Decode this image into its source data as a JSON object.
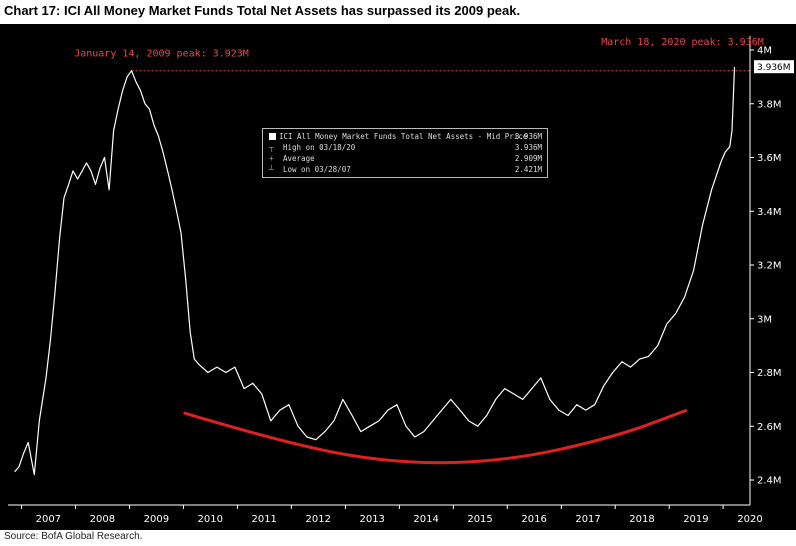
{
  "title": "Chart 17: ICI All Money Market Funds Total Net Assets has surpassed its 2009 peak.",
  "source": "Source: BofA Global Research.",
  "colors": {
    "background": "#000000",
    "series": "#ffffff",
    "annotation": "#e8474b",
    "trend": "#e02020",
    "axis_text": "#ffffff"
  },
  "chart_data": {
    "type": "line",
    "x_ticks": [
      "2007",
      "2008",
      "2009",
      "2010",
      "2011",
      "2012",
      "2013",
      "2014",
      "2015",
      "2016",
      "2017",
      "2018",
      "2019",
      "2020"
    ],
    "y_ticks": [
      "4M",
      "3.8M",
      "3.6M",
      "3.4M",
      "3.2M",
      "3M",
      "2.8M",
      "2.6M",
      "2.4M"
    ],
    "ylim": [
      2.4,
      4.0
    ],
    "y_unit": "M",
    "grid": false,
    "series": [
      {
        "name": "ICI All Money Market Funds Total Net Assets - Mid Price",
        "points": [
          [
            "2006-11-15",
            2.43
          ],
          [
            "2006-12-15",
            2.45
          ],
          [
            "2007-01-15",
            2.5
          ],
          [
            "2007-02-15",
            2.54
          ],
          [
            "2007-03-28",
            2.42
          ],
          [
            "2007-05-01",
            2.62
          ],
          [
            "2007-06-15",
            2.78
          ],
          [
            "2007-07-15",
            2.92
          ],
          [
            "2007-08-15",
            3.1
          ],
          [
            "2007-09-15",
            3.3
          ],
          [
            "2007-10-15",
            3.45
          ],
          [
            "2007-11-15",
            3.5
          ],
          [
            "2007-12-15",
            3.55
          ],
          [
            "2008-01-15",
            3.52
          ],
          [
            "2008-02-15",
            3.55
          ],
          [
            "2008-03-15",
            3.58
          ],
          [
            "2008-04-15",
            3.55
          ],
          [
            "2008-05-15",
            3.5
          ],
          [
            "2008-06-15",
            3.56
          ],
          [
            "2008-07-15",
            3.6
          ],
          [
            "2008-08-15",
            3.48
          ],
          [
            "2008-09-15",
            3.7
          ],
          [
            "2008-10-15",
            3.78
          ],
          [
            "2008-11-15",
            3.85
          ],
          [
            "2008-12-15",
            3.9
          ],
          [
            "2009-01-14",
            3.923
          ],
          [
            "2009-02-15",
            3.88
          ],
          [
            "2009-03-15",
            3.85
          ],
          [
            "2009-04-15",
            3.8
          ],
          [
            "2009-05-15",
            3.78
          ],
          [
            "2009-06-15",
            3.72
          ],
          [
            "2009-07-15",
            3.68
          ],
          [
            "2009-08-15",
            3.62
          ],
          [
            "2009-09-15",
            3.55
          ],
          [
            "2009-10-15",
            3.48
          ],
          [
            "2009-11-15",
            3.4
          ],
          [
            "2009-12-15",
            3.32
          ],
          [
            "2010-01-15",
            3.15
          ],
          [
            "2010-02-15",
            2.95
          ],
          [
            "2010-03-15",
            2.85
          ],
          [
            "2010-04-15",
            2.83
          ],
          [
            "2010-06-15",
            2.8
          ],
          [
            "2010-08-15",
            2.82
          ],
          [
            "2010-10-15",
            2.8
          ],
          [
            "2010-12-15",
            2.82
          ],
          [
            "2011-02-15",
            2.74
          ],
          [
            "2011-04-15",
            2.76
          ],
          [
            "2011-06-15",
            2.72
          ],
          [
            "2011-08-15",
            2.62
          ],
          [
            "2011-10-15",
            2.66
          ],
          [
            "2011-12-15",
            2.68
          ],
          [
            "2012-02-15",
            2.6
          ],
          [
            "2012-04-15",
            2.56
          ],
          [
            "2012-06-15",
            2.55
          ],
          [
            "2012-08-15",
            2.58
          ],
          [
            "2012-10-15",
            2.62
          ],
          [
            "2012-12-15",
            2.7
          ],
          [
            "2013-02-15",
            2.64
          ],
          [
            "2013-04-15",
            2.58
          ],
          [
            "2013-06-15",
            2.6
          ],
          [
            "2013-08-15",
            2.62
          ],
          [
            "2013-10-15",
            2.66
          ],
          [
            "2013-12-15",
            2.68
          ],
          [
            "2014-02-15",
            2.6
          ],
          [
            "2014-04-15",
            2.56
          ],
          [
            "2014-06-15",
            2.58
          ],
          [
            "2014-08-15",
            2.62
          ],
          [
            "2014-10-15",
            2.66
          ],
          [
            "2014-12-15",
            2.7
          ],
          [
            "2015-02-15",
            2.66
          ],
          [
            "2015-04-15",
            2.62
          ],
          [
            "2015-06-15",
            2.6
          ],
          [
            "2015-08-15",
            2.64
          ],
          [
            "2015-10-15",
            2.7
          ],
          [
            "2015-12-15",
            2.74
          ],
          [
            "2016-02-15",
            2.72
          ],
          [
            "2016-04-15",
            2.7
          ],
          [
            "2016-06-15",
            2.74
          ],
          [
            "2016-08-15",
            2.78
          ],
          [
            "2016-10-15",
            2.7
          ],
          [
            "2016-12-15",
            2.66
          ],
          [
            "2017-02-15",
            2.64
          ],
          [
            "2017-04-15",
            2.68
          ],
          [
            "2017-06-15",
            2.66
          ],
          [
            "2017-08-15",
            2.68
          ],
          [
            "2017-10-15",
            2.75
          ],
          [
            "2017-12-15",
            2.8
          ],
          [
            "2018-02-15",
            2.84
          ],
          [
            "2018-04-15",
            2.82
          ],
          [
            "2018-06-15",
            2.85
          ],
          [
            "2018-08-15",
            2.86
          ],
          [
            "2018-10-15",
            2.9
          ],
          [
            "2018-12-15",
            2.98
          ],
          [
            "2019-02-15",
            3.02
          ],
          [
            "2019-04-15",
            3.08
          ],
          [
            "2019-06-15",
            3.18
          ],
          [
            "2019-08-15",
            3.35
          ],
          [
            "2019-10-15",
            3.48
          ],
          [
            "2019-12-15",
            3.58
          ],
          [
            "2020-01-15",
            3.62
          ],
          [
            "2020-02-15",
            3.64
          ],
          [
            "2020-03-01",
            3.7
          ],
          [
            "2020-03-10",
            3.82
          ],
          [
            "2020-03-18",
            3.936
          ]
        ]
      }
    ],
    "trend_curve": [
      [
        "2010-01-01",
        2.65
      ],
      [
        "2012-01-01",
        2.53
      ],
      [
        "2014-01-01",
        2.46
      ],
      [
        "2016-01-01",
        2.47
      ],
      [
        "2018-01-01",
        2.56
      ],
      [
        "2019-05-01",
        2.66
      ]
    ],
    "last_value_label": "3.936M",
    "annotations": [
      {
        "text": "January 14, 2009 peak: 3.923M",
        "date": "2009-01-14",
        "value": 3.923
      },
      {
        "text": "March 18, 2020 peak: 3.936M",
        "date": "2020-03-18",
        "value": 3.936
      }
    ],
    "legend": {
      "rows": [
        {
          "symbol": "",
          "label": "ICI All Money Market Funds Total Net Assets - Mid Price",
          "value": "3.936M"
        },
        {
          "symbol": "┬",
          "label": "High on 03/18/20",
          "value": "3.936M"
        },
        {
          "symbol": "+",
          "label": "Average",
          "value": "2.909M"
        },
        {
          "symbol": "┴",
          "label": "Low on 03/28/07",
          "value": "2.421M"
        }
      ]
    }
  }
}
